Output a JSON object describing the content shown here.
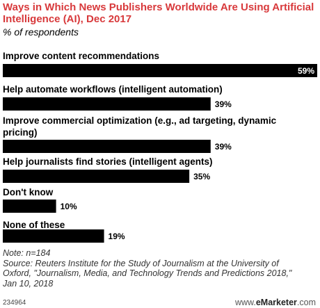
{
  "title": "Ways in Which News Publishers Worldwide Are Using Artificial Intelligence (AI), Dec 2017",
  "subtitle": "% of respondents",
  "chart_data": {
    "type": "bar",
    "orientation": "horizontal",
    "categories": [
      [
        "Improve content recommendations"
      ],
      [
        "Help automate workflows (intelligent automation)"
      ],
      [
        "Improve commercial optimization (e.g., ad targeting, dynamic",
        "pricing)"
      ],
      [
        "Help journalists find stories (intelligent agents)"
      ],
      [
        "Don't know"
      ],
      [
        "None of these"
      ]
    ],
    "values": [
      59,
      39,
      39,
      35,
      10,
      19
    ],
    "value_labels": [
      "59%",
      "39%",
      "39%",
      "35%",
      "10%",
      "19%"
    ],
    "xlim": [
      0,
      59
    ],
    "bar_color": "#000000"
  },
  "note": [
    "Note: n=184",
    "Source: Reuters Institute for the Study of Journalism at the University of",
    "Oxford, \"Journalism, Media, and Technology Trends and Predictions 2018,\"",
    "Jan 10, 2018"
  ],
  "footer_id": "234964",
  "brand": {
    "prefix": "www.",
    "name": "eMarketer",
    "suffix": ".com"
  },
  "colors": {
    "title": "#d8393b"
  }
}
